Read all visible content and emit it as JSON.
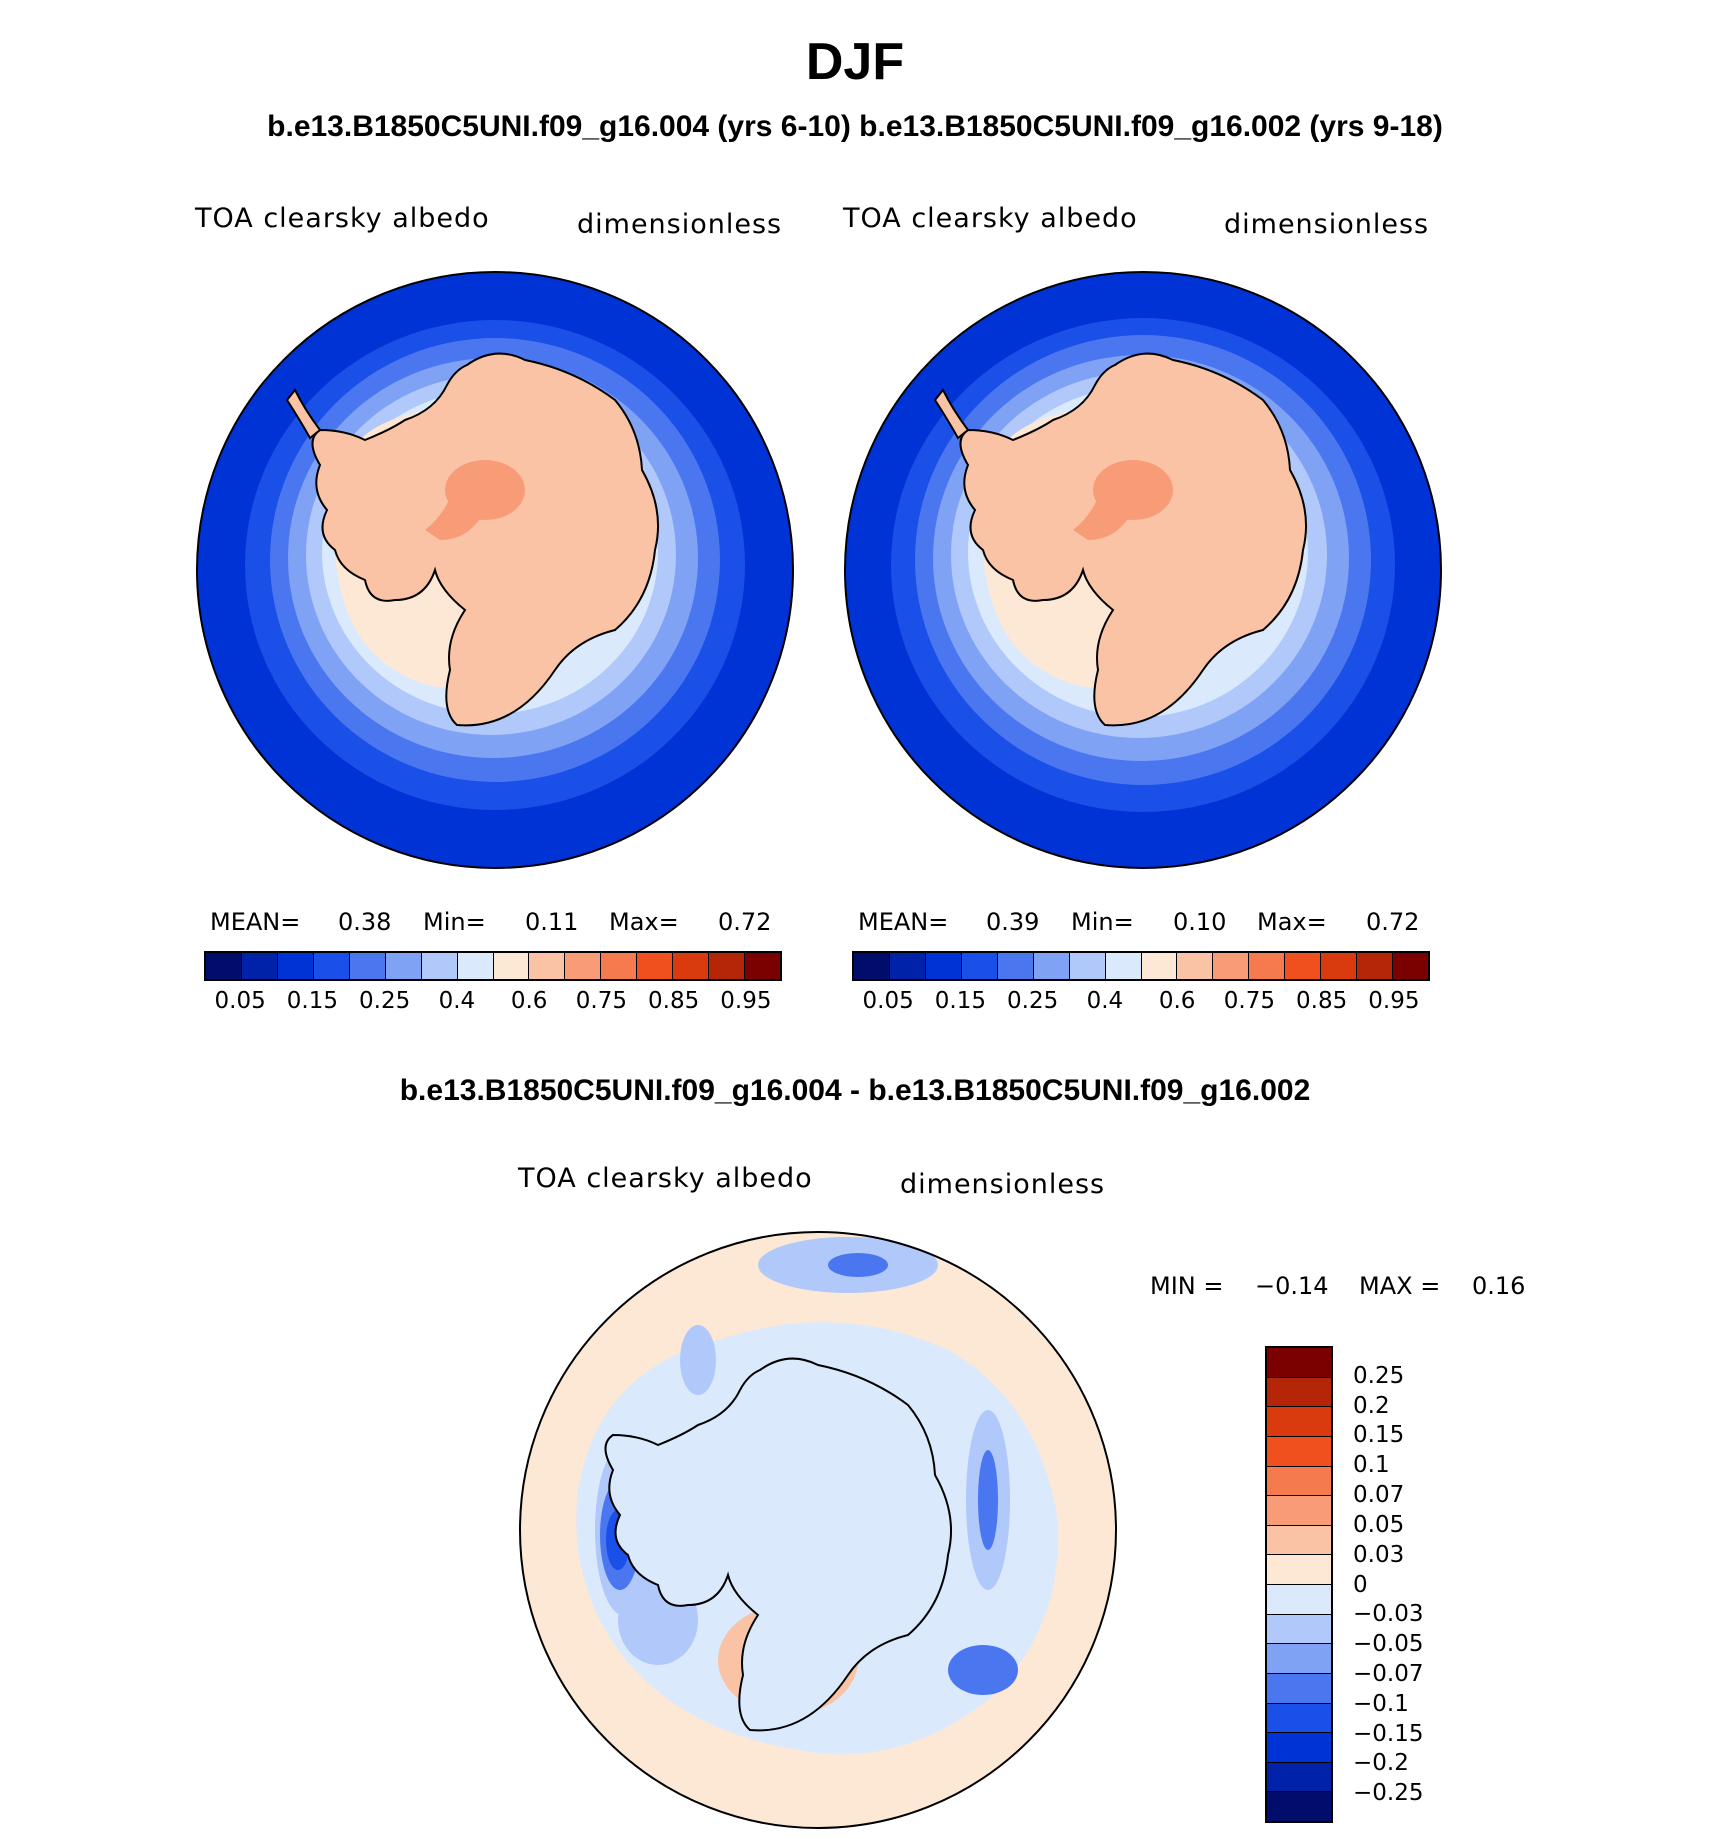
{
  "header": {
    "title": "DJF",
    "subtitle_top": "b.e13.B1850C5UNI.f09_g16.004 (yrs 6-10) b.e13.B1850C5UNI.f09_g16.002 (yrs 9-18)",
    "subtitle_diff": "b.e13.B1850C5UNI.f09_g16.004 - b.e13.B1850C5UNI.f09_g16.002"
  },
  "panels": [
    {
      "variable": "TOA clearsky albedo",
      "units": "dimensionless",
      "mean_label": "MEAN=",
      "mean": "0.38",
      "min_label": "Min=",
      "min": "0.11",
      "max_label": "Max=",
      "max": "0.72"
    },
    {
      "variable": "TOA clearsky albedo",
      "units": "dimensionless",
      "mean_label": "MEAN=",
      "mean": "0.39",
      "min_label": "Min=",
      "min": "0.10",
      "max_label": "Max=",
      "max": "0.72"
    }
  ],
  "diff_panel": {
    "variable": "TOA clearsky albedo",
    "units": "dimensionless",
    "min_label": "MIN =",
    "min": "−0.14",
    "max_label": "MAX =",
    "max": "0.16"
  },
  "colorbar_main": {
    "colors": [
      "#000d6b",
      "#0022a8",
      "#0033d6",
      "#1a4fe8",
      "#4a77f0",
      "#7fa2f5",
      "#b0c8fa",
      "#dbe9fd",
      "#fde8d6",
      "#fbc3a5",
      "#f89c78",
      "#f57a4e",
      "#f0501e",
      "#d93a0e",
      "#b52508",
      "#7b0000"
    ],
    "ticks": [
      "0.05",
      "0.15",
      "0.25",
      "0.4",
      "0.6",
      "0.75",
      "0.85",
      "0.95"
    ]
  },
  "colorbar_diff": {
    "colors": [
      "#7b0000",
      "#b52508",
      "#d93a0e",
      "#f0501e",
      "#f57a4e",
      "#f89c78",
      "#fbc3a5",
      "#fde8d6",
      "#dbe9fd",
      "#b0c8fa",
      "#7fa2f5",
      "#4a77f0",
      "#1a4fe8",
      "#0033d6",
      "#0022a8",
      "#000d6b"
    ],
    "ticks": [
      "0.25",
      "0.2",
      "0.15",
      "0.1",
      "0.07",
      "0.05",
      "0.03",
      "0",
      "−0.03",
      "−0.05",
      "−0.07",
      "−0.1",
      "−0.15",
      "−0.2",
      "−0.25"
    ]
  },
  "map_colors": {
    "ocean_deep": "#0033d6",
    "ocean_mid": "#1a4fe8",
    "ocean_light": "#4a77f0",
    "ocean_pale": "#7fa2f5",
    "ring_pale": "#b0c8fa",
    "ring_white": "#dbe9fd",
    "ice_cream": "#fde8d6",
    "land": "#fbc3a5",
    "land_dark": "#f89c78",
    "coast": "#000000"
  }
}
